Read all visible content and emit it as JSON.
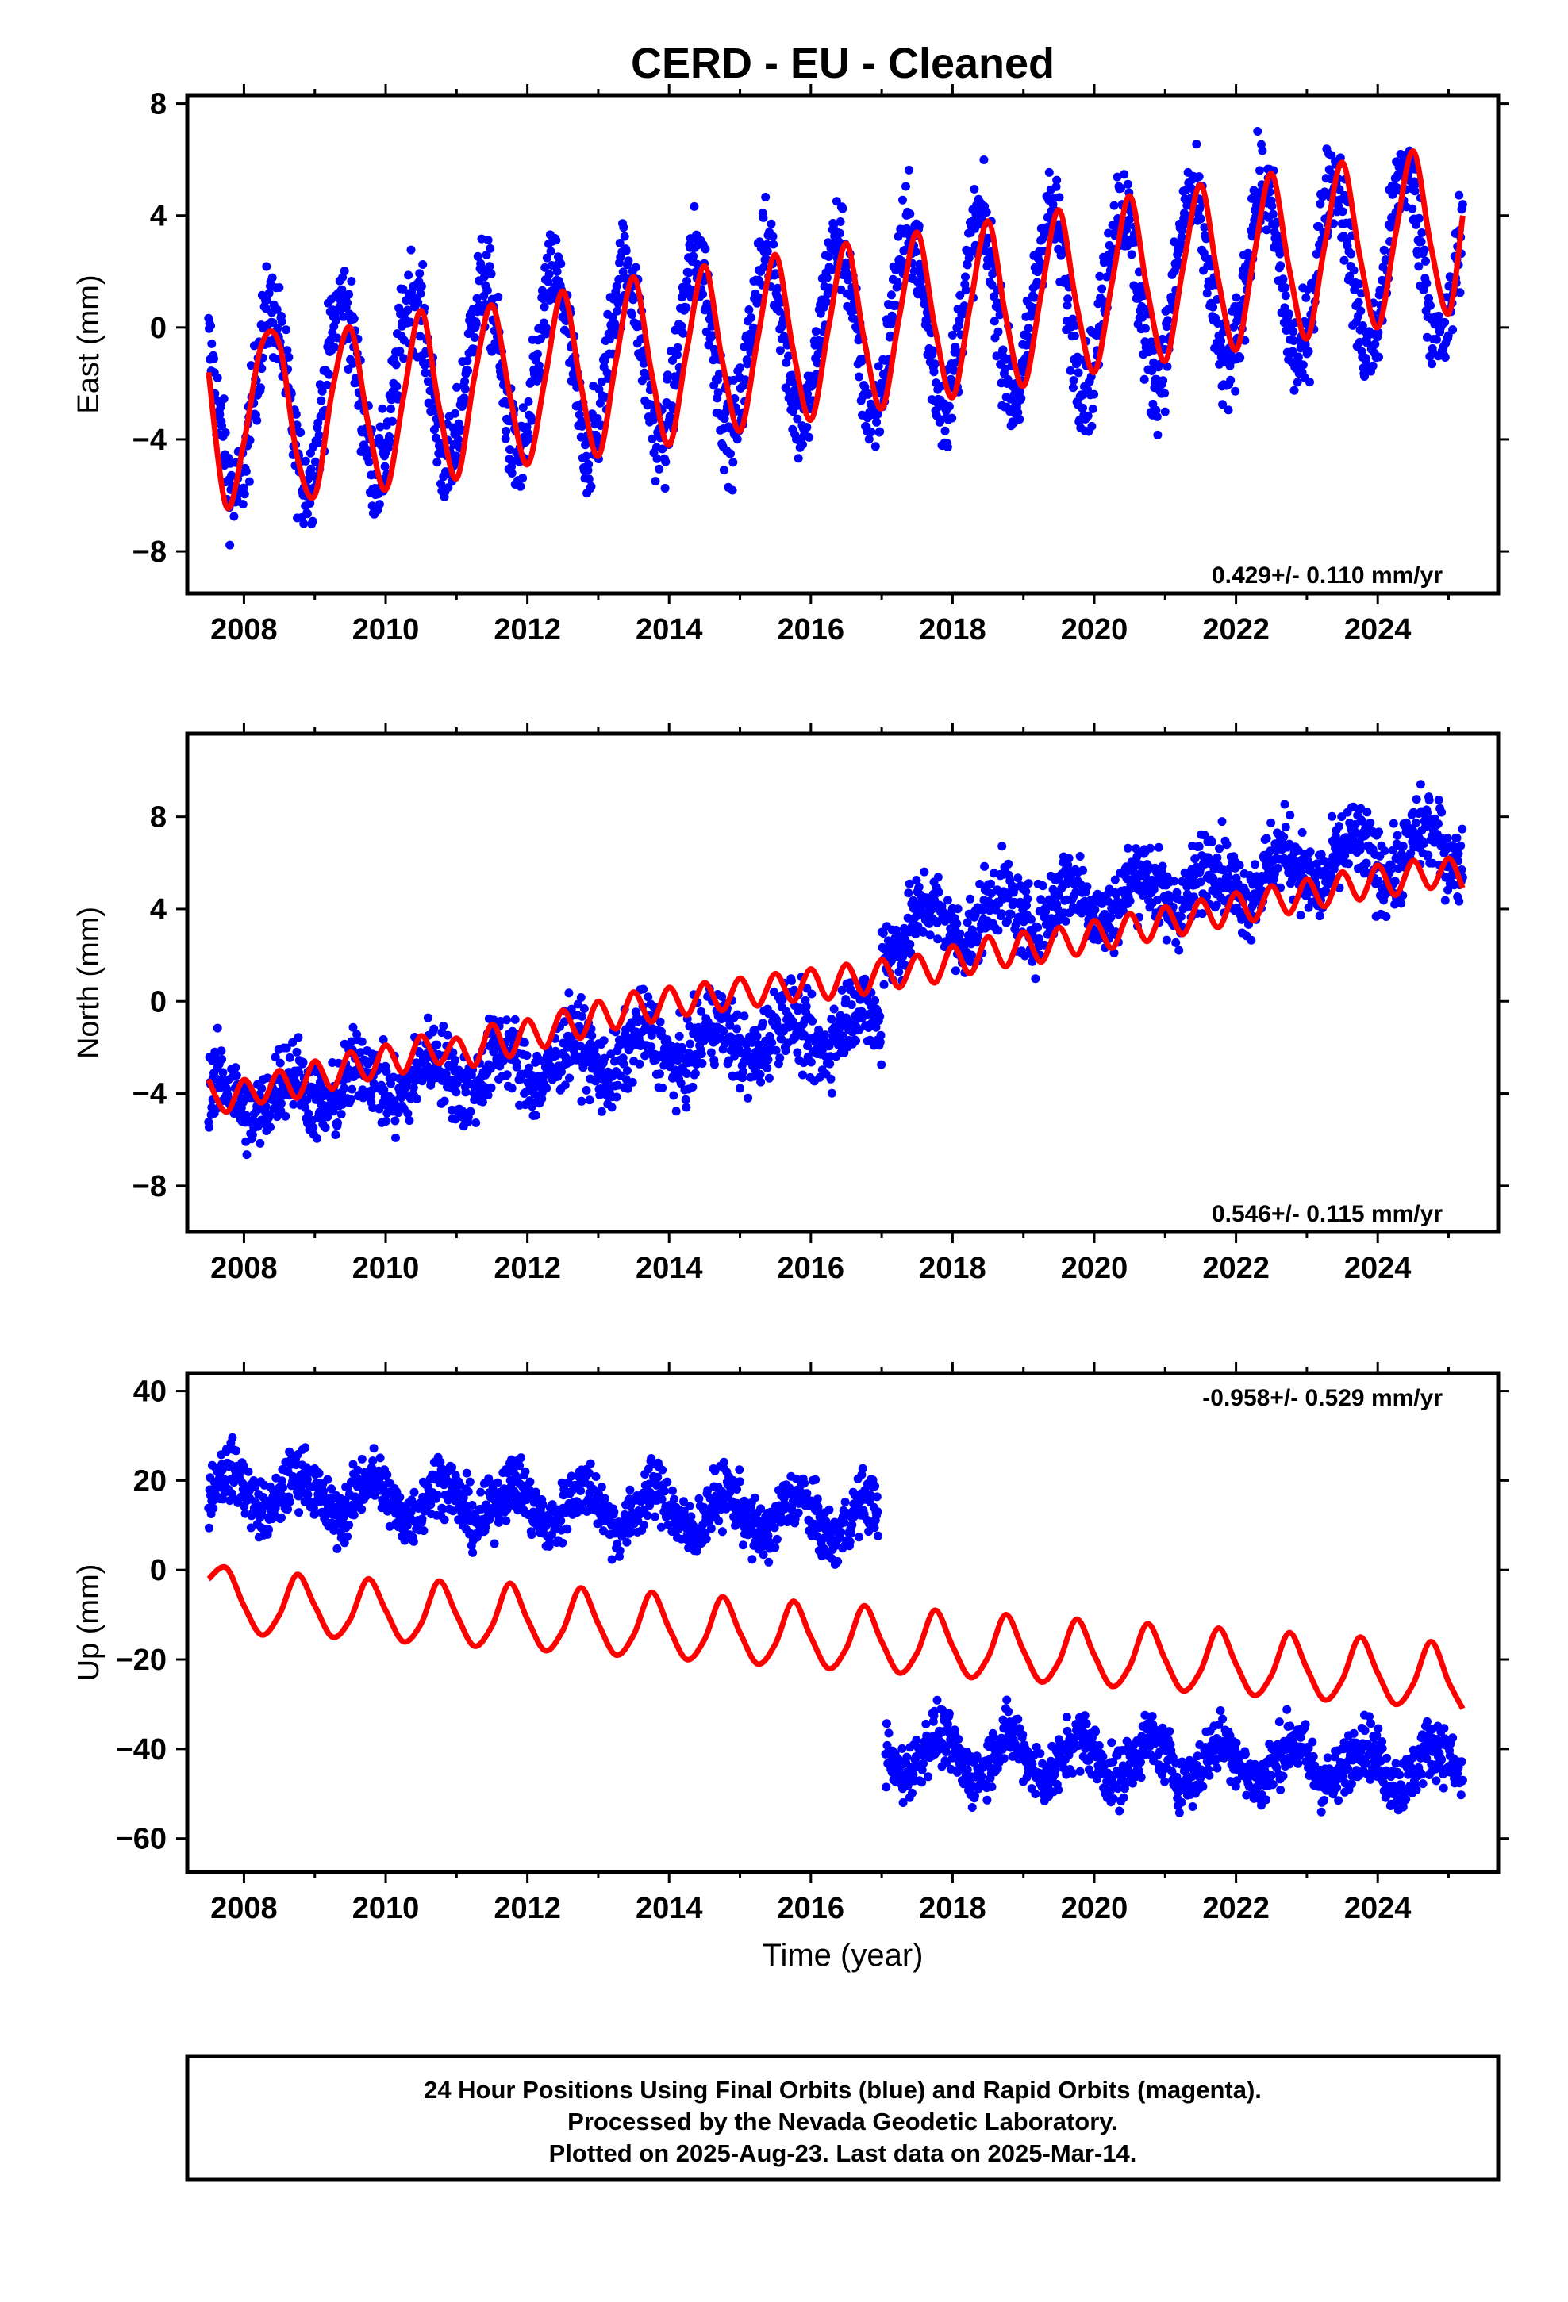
{
  "title": "CERD  - EU - Cleaned",
  "footer": {
    "line1": "24 Hour Positions Using Final Orbits (blue) and Rapid Orbits (magenta).",
    "line2": "Processed by the Nevada Geodetic Laboratory.",
    "line3": "Plotted on 2025-Aug-23. Last data on 2025-Mar-14."
  },
  "colors": {
    "data": "#0000ff",
    "model": "#ff0000",
    "axis": "#000000"
  },
  "chart_data": [
    {
      "type": "scatter",
      "ylabel": "East (mm)",
      "rate_label": "0.429+/- 0.110 mm/yr",
      "xlim": [
        2007.2,
        2025.7
      ],
      "ylim": [
        -9.5,
        8.3
      ],
      "xticks": [
        "2008",
        "2010",
        "2012",
        "2014",
        "2016",
        "2018",
        "2020",
        "2022",
        "2024"
      ],
      "yticks": [
        "−8",
        "−4",
        "0",
        "4",
        "8"
      ],
      "data_range": [
        2007.5,
        2025.2
      ],
      "model_curve": [
        [
          2007.5,
          -1.6
        ],
        [
          2007.75,
          -6.4
        ],
        [
          2008.0,
          -4.1
        ],
        [
          2008.25,
          -0.6
        ],
        [
          2008.5,
          -0.6
        ],
        [
          2008.75,
          -4.6
        ],
        [
          2009.0,
          -6.0
        ],
        [
          2009.25,
          -2.2
        ],
        [
          2009.5,
          0.0
        ],
        [
          2009.75,
          -3.4
        ],
        [
          2010.0,
          -5.8
        ],
        [
          2010.25,
          -2.5
        ],
        [
          2010.5,
          0.6
        ],
        [
          2010.75,
          -2.8
        ],
        [
          2011.0,
          -5.4
        ],
        [
          2011.25,
          -1.8
        ],
        [
          2011.5,
          0.8
        ],
        [
          2011.75,
          -2.4
        ],
        [
          2012.0,
          -4.9
        ],
        [
          2012.25,
          -1.8
        ],
        [
          2012.5,
          1.3
        ],
        [
          2012.75,
          -2.0
        ],
        [
          2013.0,
          -4.6
        ],
        [
          2013.25,
          -1.2
        ],
        [
          2013.5,
          1.8
        ],
        [
          2013.75,
          -1.6
        ],
        [
          2014.0,
          -4.2
        ],
        [
          2014.25,
          -0.8
        ],
        [
          2014.5,
          2.2
        ],
        [
          2014.75,
          -1.2
        ],
        [
          2015.0,
          -3.7
        ],
        [
          2015.25,
          -0.4
        ],
        [
          2015.5,
          2.6
        ],
        [
          2015.75,
          -0.8
        ],
        [
          2016.0,
          -3.3
        ],
        [
          2016.25,
          0.0
        ],
        [
          2016.5,
          3.0
        ],
        [
          2016.75,
          -0.4
        ],
        [
          2017.0,
          -2.9
        ],
        [
          2017.25,
          0.4
        ],
        [
          2017.5,
          3.4
        ],
        [
          2017.75,
          0.0
        ],
        [
          2018.0,
          -2.5
        ],
        [
          2018.25,
          0.8
        ],
        [
          2018.5,
          3.8
        ],
        [
          2018.75,
          0.4
        ],
        [
          2019.0,
          -2.1
        ],
        [
          2019.25,
          1.2
        ],
        [
          2019.5,
          4.2
        ],
        [
          2019.75,
          0.8
        ],
        [
          2020.0,
          -1.6
        ],
        [
          2020.25,
          1.6
        ],
        [
          2020.5,
          4.7
        ],
        [
          2020.75,
          1.3
        ],
        [
          2021.0,
          -1.2
        ],
        [
          2021.25,
          2.1
        ],
        [
          2021.5,
          5.1
        ],
        [
          2021.75,
          1.7
        ],
        [
          2022.0,
          -0.8
        ],
        [
          2022.25,
          2.5
        ],
        [
          2022.5,
          5.5
        ],
        [
          2022.75,
          2.1
        ],
        [
          2023.0,
          -0.4
        ],
        [
          2023.25,
          2.9
        ],
        [
          2023.5,
          5.9
        ],
        [
          2023.75,
          2.5
        ],
        [
          2024.0,
          0.0
        ],
        [
          2024.25,
          3.3
        ],
        [
          2024.5,
          6.3
        ],
        [
          2024.75,
          2.9
        ],
        [
          2025.0,
          0.5
        ],
        [
          2025.2,
          4.0
        ]
      ]
    },
    {
      "type": "scatter",
      "ylabel": "North (mm)",
      "rate_label": "0.546+/- 0.115 mm/yr",
      "xlim": [
        2007.2,
        2025.7
      ],
      "ylim": [
        -10.0,
        11.6
      ],
      "xticks": [
        "2008",
        "2010",
        "2012",
        "2014",
        "2016",
        "2018",
        "2020",
        "2022",
        "2024"
      ],
      "yticks": [
        "−8",
        "−4",
        "0",
        "4",
        "8"
      ],
      "data_range": [
        2007.5,
        2025.2
      ],
      "model_curve": [
        [
          2007.5,
          -3.4
        ],
        [
          2007.75,
          -4.8
        ],
        [
          2008.0,
          -3.4
        ],
        [
          2008.25,
          -4.4
        ],
        [
          2008.5,
          -3.0
        ],
        [
          2008.75,
          -4.2
        ],
        [
          2009.0,
          -2.6
        ],
        [
          2009.25,
          -3.8
        ],
        [
          2009.5,
          -2.2
        ],
        [
          2009.75,
          -3.4
        ],
        [
          2010.0,
          -1.9
        ],
        [
          2010.25,
          -3.1
        ],
        [
          2010.5,
          -1.5
        ],
        [
          2010.75,
          -2.7
        ],
        [
          2011.0,
          -1.6
        ],
        [
          2011.25,
          -2.8
        ],
        [
          2011.5,
          -1.0
        ],
        [
          2011.75,
          -2.4
        ],
        [
          2012.0,
          -0.8
        ],
        [
          2012.25,
          -2.0
        ],
        [
          2012.5,
          -0.4
        ],
        [
          2012.75,
          -1.6
        ],
        [
          2013.0,
          0.0
        ],
        [
          2013.25,
          -1.2
        ],
        [
          2013.5,
          0.4
        ],
        [
          2013.75,
          -0.9
        ],
        [
          2014.0,
          0.6
        ],
        [
          2014.25,
          -0.6
        ],
        [
          2014.5,
          0.8
        ],
        [
          2014.75,
          -0.4
        ],
        [
          2015.0,
          1.0
        ],
        [
          2015.25,
          -0.2
        ],
        [
          2015.5,
          1.2
        ],
        [
          2015.75,
          0.0
        ],
        [
          2016.0,
          1.4
        ],
        [
          2016.25,
          0.1
        ],
        [
          2016.5,
          1.6
        ],
        [
          2016.75,
          0.3
        ],
        [
          2017.0,
          1.8
        ],
        [
          2017.25,
          0.6
        ],
        [
          2017.5,
          2.0
        ],
        [
          2017.75,
          0.8
        ],
        [
          2018.0,
          2.4
        ],
        [
          2018.25,
          1.2
        ],
        [
          2018.5,
          2.8
        ],
        [
          2018.75,
          1.5
        ],
        [
          2019.0,
          3.0
        ],
        [
          2019.25,
          1.7
        ],
        [
          2019.5,
          3.2
        ],
        [
          2019.75,
          2.0
        ],
        [
          2020.0,
          3.5
        ],
        [
          2020.25,
          2.3
        ],
        [
          2020.5,
          3.8
        ],
        [
          2020.75,
          2.6
        ],
        [
          2021.0,
          4.1
        ],
        [
          2021.25,
          2.9
        ],
        [
          2021.5,
          4.4
        ],
        [
          2021.75,
          3.2
        ],
        [
          2022.0,
          4.7
        ],
        [
          2022.25,
          3.5
        ],
        [
          2022.5,
          5.0
        ],
        [
          2022.75,
          3.8
        ],
        [
          2023.0,
          5.3
        ],
        [
          2023.25,
          4.1
        ],
        [
          2023.5,
          5.6
        ],
        [
          2023.75,
          4.4
        ],
        [
          2024.0,
          5.9
        ],
        [
          2024.25,
          4.6
        ],
        [
          2024.5,
          6.1
        ],
        [
          2024.75,
          4.9
        ],
        [
          2025.0,
          6.2
        ],
        [
          2025.2,
          4.9
        ]
      ]
    },
    {
      "type": "scatter",
      "ylabel": "Up (mm)",
      "xlabel": "Time (year)",
      "rate_label": "-0.958+/- 0.529 mm/yr",
      "xlim": [
        2007.2,
        2025.7
      ],
      "ylim": [
        -67.5,
        44.0
      ],
      "xticks": [
        "2008",
        "2010",
        "2012",
        "2014",
        "2016",
        "2018",
        "2020",
        "2022",
        "2024"
      ],
      "yticks": [
        "−60",
        "−40",
        "−20",
        "0",
        "20",
        "40"
      ],
      "data_range": [
        2007.5,
        2025.2
      ],
      "model_curve": [
        [
          2007.5,
          -2.0
        ],
        [
          2007.75,
          0.5
        ],
        [
          2008.0,
          -8.0
        ],
        [
          2008.25,
          -14.5
        ],
        [
          2008.5,
          -10.0
        ],
        [
          2008.75,
          -1.0
        ],
        [
          2009.0,
          -8.0
        ],
        [
          2009.25,
          -15.0
        ],
        [
          2009.5,
          -11.0
        ],
        [
          2009.75,
          -2.0
        ],
        [
          2010.0,
          -9.0
        ],
        [
          2010.25,
          -16.0
        ],
        [
          2010.5,
          -12.0
        ],
        [
          2010.75,
          -2.5
        ],
        [
          2011.0,
          -10.0
        ],
        [
          2011.25,
          -17.0
        ],
        [
          2011.5,
          -12.5
        ],
        [
          2011.75,
          -3.0
        ],
        [
          2012.0,
          -11.0
        ],
        [
          2012.25,
          -18.0
        ],
        [
          2012.5,
          -13.5
        ],
        [
          2012.75,
          -4.0
        ],
        [
          2013.0,
          -12.0
        ],
        [
          2013.25,
          -19.0
        ],
        [
          2013.5,
          -14.5
        ],
        [
          2013.75,
          -5.0
        ],
        [
          2014.0,
          -13.0
        ],
        [
          2014.25,
          -20.0
        ],
        [
          2014.5,
          -15.5
        ],
        [
          2014.75,
          -6.0
        ],
        [
          2015.0,
          -14.0
        ],
        [
          2015.25,
          -21.0
        ],
        [
          2015.5,
          -16.5
        ],
        [
          2015.75,
          -7.0
        ],
        [
          2016.0,
          -15.0
        ],
        [
          2016.25,
          -22.0
        ],
        [
          2016.5,
          -17.5
        ],
        [
          2016.75,
          -8.0
        ],
        [
          2017.0,
          -16.0
        ],
        [
          2017.25,
          -23.0
        ],
        [
          2017.5,
          -18.5
        ],
        [
          2017.75,
          -9.0
        ],
        [
          2018.0,
          -17.0
        ],
        [
          2018.25,
          -24.0
        ],
        [
          2018.5,
          -19.5
        ],
        [
          2018.75,
          -10.0
        ],
        [
          2019.0,
          -18.0
        ],
        [
          2019.25,
          -25.0
        ],
        [
          2019.5,
          -20.5
        ],
        [
          2019.75,
          -11.0
        ],
        [
          2020.0,
          -19.0
        ],
        [
          2020.25,
          -26.0
        ],
        [
          2020.5,
          -21.5
        ],
        [
          2020.75,
          -12.0
        ],
        [
          2021.0,
          -20.0
        ],
        [
          2021.25,
          -27.0
        ],
        [
          2021.5,
          -22.5
        ],
        [
          2021.75,
          -13.0
        ],
        [
          2022.0,
          -21.0
        ],
        [
          2022.25,
          -28.0
        ],
        [
          2022.5,
          -23.5
        ],
        [
          2022.75,
          -14.0
        ],
        [
          2023.0,
          -22.0
        ],
        [
          2023.25,
          -29.0
        ],
        [
          2023.5,
          -24.5
        ],
        [
          2023.75,
          -15.0
        ],
        [
          2024.0,
          -23.0
        ],
        [
          2024.25,
          -30.0
        ],
        [
          2024.5,
          -25.5
        ],
        [
          2024.75,
          -16.0
        ],
        [
          2025.0,
          -25.0
        ],
        [
          2025.2,
          -31.0
        ]
      ]
    }
  ]
}
